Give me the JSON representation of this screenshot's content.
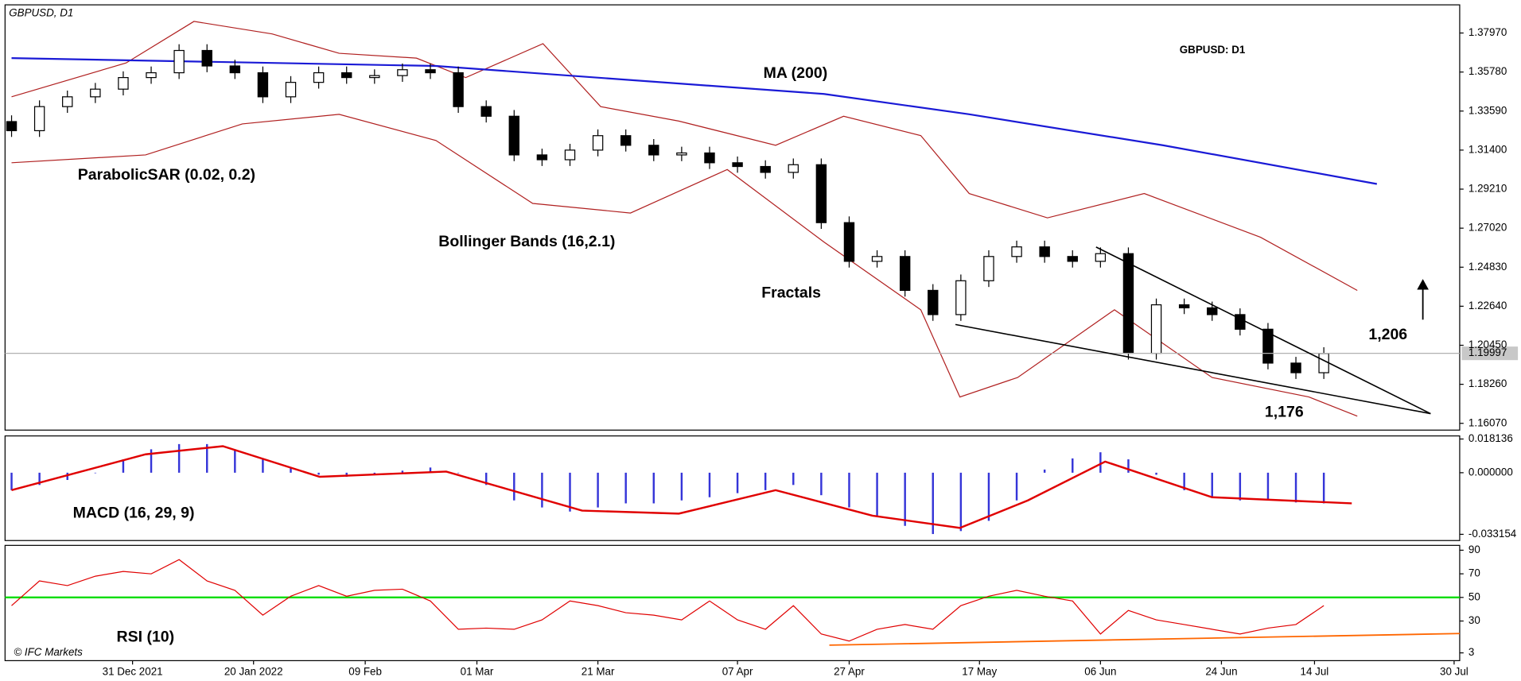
{
  "chart_data": [
    {
      "type": "candlestick",
      "title": "GBPUSD: D1",
      "subtitle": "GBPUSD, D1",
      "xlim": [
        -0.7,
        155.6
      ],
      "x": [
        0,
        3,
        6,
        9,
        12,
        15,
        18,
        21,
        24,
        27,
        30,
        33,
        36,
        39,
        42,
        45,
        48,
        51,
        54,
        57,
        60,
        63,
        66,
        69,
        72,
        75,
        78,
        81,
        84,
        87,
        90,
        93,
        96,
        99,
        102,
        105,
        108,
        111,
        114,
        117,
        120,
        123,
        126,
        129,
        132,
        135,
        138,
        141
      ],
      "open": [
        1.33,
        1.3249,
        1.3384,
        1.3439,
        1.3482,
        1.3547,
        1.3574,
        1.3699,
        1.3612,
        1.3574,
        1.3439,
        1.352,
        1.3574,
        1.3547,
        1.3558,
        1.3591,
        1.3574,
        1.3384,
        1.333,
        1.3113,
        1.3086,
        1.314,
        1.3221,
        1.3167,
        1.3113,
        1.3124,
        1.3069,
        1.3048,
        1.3015,
        1.3058,
        1.2733,
        1.2516,
        1.2543,
        1.2353,
        1.2217,
        1.2407,
        1.2543,
        1.2597,
        1.2543,
        1.2516,
        1.2559,
        1.2,
        1.2272,
        1.2255,
        1.2217,
        1.2135,
        1.1945,
        1.1891
      ],
      "high": [
        1.3335,
        1.3419,
        1.3474,
        1.3517,
        1.3582,
        1.3609,
        1.3734,
        1.3734,
        1.3647,
        1.3609,
        1.3555,
        1.3609,
        1.3609,
        1.3593,
        1.3626,
        1.3626,
        1.3609,
        1.3419,
        1.3365,
        1.3148,
        1.3175,
        1.3256,
        1.3256,
        1.3202,
        1.3159,
        1.3159,
        1.3104,
        1.3083,
        1.3093,
        1.3093,
        1.2768,
        1.2578,
        1.2578,
        1.2388,
        1.2442,
        1.2578,
        1.2632,
        1.2632,
        1.2578,
        1.2594,
        1.2594,
        1.2307,
        1.2307,
        1.229,
        1.2252,
        1.217,
        1.198,
        1.2034
      ],
      "low": [
        1.3214,
        1.3214,
        1.3349,
        1.3404,
        1.3447,
        1.3512,
        1.3539,
        1.3577,
        1.3539,
        1.3404,
        1.3404,
        1.3485,
        1.3512,
        1.3512,
        1.3523,
        1.3539,
        1.3349,
        1.3295,
        1.3078,
        1.3051,
        1.3051,
        1.3105,
        1.3132,
        1.3078,
        1.3078,
        1.3034,
        1.3013,
        1.298,
        1.298,
        1.2698,
        1.2481,
        1.2481,
        1.2318,
        1.2182,
        1.2182,
        1.2372,
        1.2508,
        1.2508,
        1.2481,
        1.2481,
        1.1965,
        1.1965,
        1.222,
        1.2182,
        1.21,
        1.191,
        1.1856,
        1.1856
      ],
      "close": [
        1.3249,
        1.3384,
        1.3439,
        1.3482,
        1.3547,
        1.3574,
        1.3699,
        1.3612,
        1.3574,
        1.3439,
        1.352,
        1.3574,
        1.3547,
        1.3558,
        1.3591,
        1.3574,
        1.3384,
        1.333,
        1.3113,
        1.3086,
        1.314,
        1.3221,
        1.3167,
        1.3113,
        1.3124,
        1.3069,
        1.3048,
        1.3015,
        1.3058,
        1.2733,
        1.2516,
        1.2543,
        1.2353,
        1.2217,
        1.2407,
        1.2543,
        1.2597,
        1.2543,
        1.2516,
        1.2559,
        1.2,
        1.2272,
        1.2255,
        1.2217,
        1.2135,
        1.1945,
        1.1891,
        1.1999
      ],
      "up_color": "#ffffff",
      "down_color": "#000000",
      "ylim": [
        1.1569,
        1.3955
      ],
      "yticks": [
        {
          "value": 1.1607,
          "label": "1.16070"
        },
        {
          "value": 1.1826,
          "label": "1.18260"
        },
        {
          "value": 1.2045,
          "label": "1.20450"
        },
        {
          "value": 1.2264,
          "label": "1.22640"
        },
        {
          "value": 1.2483,
          "label": "1.24830"
        },
        {
          "value": 1.2702,
          "label": "1.27020"
        },
        {
          "value": 1.2921,
          "label": "1.29210"
        },
        {
          "value": 1.314,
          "label": "1.31400"
        },
        {
          "value": 1.3359,
          "label": "1.33590"
        },
        {
          "value": 1.3578,
          "label": "1.35780"
        },
        {
          "value": 1.3797,
          "label": "1.37970"
        }
      ],
      "last_price": 1.19997,
      "ma": {
        "name": "MA (200)",
        "color": "#1a1ad6",
        "x": [
          0,
          45.6,
          87.3,
          102.9,
          123.75,
          146.7
        ],
        "values": [
          1.3656,
          1.3612,
          1.3455,
          1.3341,
          1.3167,
          1.295
        ]
      },
      "bollinger": {
        "name": "Bollinger Bands (16,2.1)",
        "color": "#b02020",
        "upper": {
          "x": [
            0,
            12.3,
            19.6,
            28,
            35.2,
            43.5,
            48.8,
            57.1,
            63.3,
            71.7,
            82.1,
            89.4,
            97.7,
            102.9,
            111.3,
            121.7,
            134.2,
            144.6
          ],
          "values": [
            1.3439,
            1.3629,
            1.3862,
            1.3792,
            1.3683,
            1.3656,
            1.3547,
            1.3737,
            1.3384,
            1.3303,
            1.3167,
            1.333,
            1.3221,
            1.2896,
            1.276,
            1.2896,
            1.2651,
            1.2353
          ]
        },
        "lower": {
          "x": [
            0,
            14.4,
            24.8,
            35.2,
            45.6,
            56,
            66.5,
            76.9,
            87.3,
            97.7,
            101.9,
            108.1,
            118.5,
            129,
            139.4,
            144.6
          ],
          "values": [
            1.3069,
            1.3113,
            1.3287,
            1.3341,
            1.3194,
            1.2841,
            1.2787,
            1.3031,
            1.2624,
            1.2244,
            1.1755,
            1.1864,
            1.2244,
            1.1864,
            1.1755,
            1.1647
          ]
        }
      },
      "annotations": {
        "sar": "ParabolicSAR (0.02, 0.2)",
        "fractals": "Fractals",
        "high": "1,206",
        "low": "1,176"
      }
    },
    {
      "type": "macd",
      "name": "MACD (16, 29, 9)",
      "xlim": [
        -0.7,
        155.6
      ],
      "x": [
        0,
        3,
        6,
        9,
        12,
        15,
        18,
        21,
        24,
        27,
        30,
        33,
        36,
        39,
        42,
        45,
        48,
        51,
        54,
        57,
        60,
        63,
        66,
        69,
        72,
        75,
        78,
        81,
        84,
        87,
        90,
        93,
        96,
        99,
        102,
        105,
        108,
        111,
        114,
        117,
        120,
        123,
        126,
        129,
        132,
        135,
        138,
        141
      ],
      "values": [
        -0.0094,
        -0.0066,
        -0.0039,
        0,
        0.0072,
        0.0126,
        0.0154,
        0.0154,
        0.0126,
        0.0072,
        0.0028,
        -0.0011,
        -0.0022,
        -0.0011,
        0.0011,
        0.0028,
        0,
        -0.0066,
        -0.0149,
        -0.0187,
        -0.0209,
        -0.0187,
        -0.0165,
        -0.0165,
        -0.0149,
        -0.0132,
        -0.011,
        -0.0094,
        -0.0066,
        -0.0121,
        -0.0187,
        -0.0231,
        -0.0286,
        -0.033,
        -0.0314,
        -0.0259,
        -0.0149,
        0.0017,
        0.0077,
        0.011,
        0.0072,
        -0.0011,
        -0.0094,
        -0.0132,
        -0.0149,
        -0.0143,
        -0.016,
        -0.0165
      ],
      "color": "#3535d8",
      "signal": {
        "color": "#e00000",
        "x": [
          0,
          14.4,
          22.7,
          33.1,
          46.7,
          61.3,
          71.7,
          82.1,
          92.5,
          101.9,
          109.2,
          117.5,
          129,
          144
        ],
        "values": [
          -0.0094,
          0.0099,
          0.0143,
          -0.0022,
          0.0006,
          -0.0204,
          -0.022,
          -0.0094,
          -0.0231,
          -0.0297,
          -0.0149,
          0.006,
          -0.0132,
          -0.0165
        ]
      },
      "ylim": [
        -0.0365,
        0.0198
      ],
      "yticks": [
        -0.033154,
        {
          "value": 0,
          "label": "0.000000"
        },
        0.018136
      ]
    },
    {
      "type": "rsi",
      "name": "RSI (10)",
      "xlim": [
        -0.7,
        155.6
      ],
      "x": [
        0,
        3,
        6,
        9,
        12,
        15,
        18,
        21,
        24,
        27,
        30,
        33,
        36,
        39,
        42,
        45,
        48,
        51,
        54,
        57,
        60,
        63,
        66,
        69,
        72,
        75,
        78,
        81,
        84,
        87,
        90,
        93,
        96,
        99,
        102,
        105,
        108,
        111,
        114,
        117,
        120,
        123,
        126,
        129,
        132,
        135,
        138,
        141
      ],
      "values": [
        43,
        64,
        60,
        68,
        72,
        70,
        82,
        64,
        56,
        35,
        51,
        60,
        51,
        56,
        57,
        47,
        23,
        24,
        23,
        31,
        47,
        43,
        37,
        35,
        31,
        47,
        31,
        23,
        43,
        19,
        13,
        23,
        27,
        23,
        43,
        51,
        56,
        51,
        47,
        19,
        39,
        31,
        27,
        23,
        19,
        24,
        27,
        43
      ],
      "color": "#e00000",
      "level": 50,
      "level_color": "#00dd00",
      "ylim": [
        -3.6,
        94.1
      ],
      "yticks": [
        3,
        30,
        50,
        70,
        90
      ],
      "xticks": [
        {
          "value": 13,
          "label": "31 Dec 2021"
        },
        {
          "value": 26,
          "label": "20 Jan 2022"
        },
        {
          "value": 38,
          "label": "09 Feb"
        },
        {
          "value": 50,
          "label": "01 Mar"
        },
        {
          "value": 63,
          "label": "21 Mar"
        },
        {
          "value": 78,
          "label": "07 Apr"
        },
        {
          "value": 90,
          "label": "27 Apr"
        },
        {
          "value": 104,
          "label": "17 May"
        },
        {
          "value": 117,
          "label": "06 Jun"
        },
        {
          "value": 130,
          "label": "24 Jun"
        },
        {
          "value": 140,
          "label": "14 Jul"
        },
        {
          "value": 155,
          "label": "30 Jul"
        }
      ],
      "credit": "© IFC Markets"
    }
  ]
}
